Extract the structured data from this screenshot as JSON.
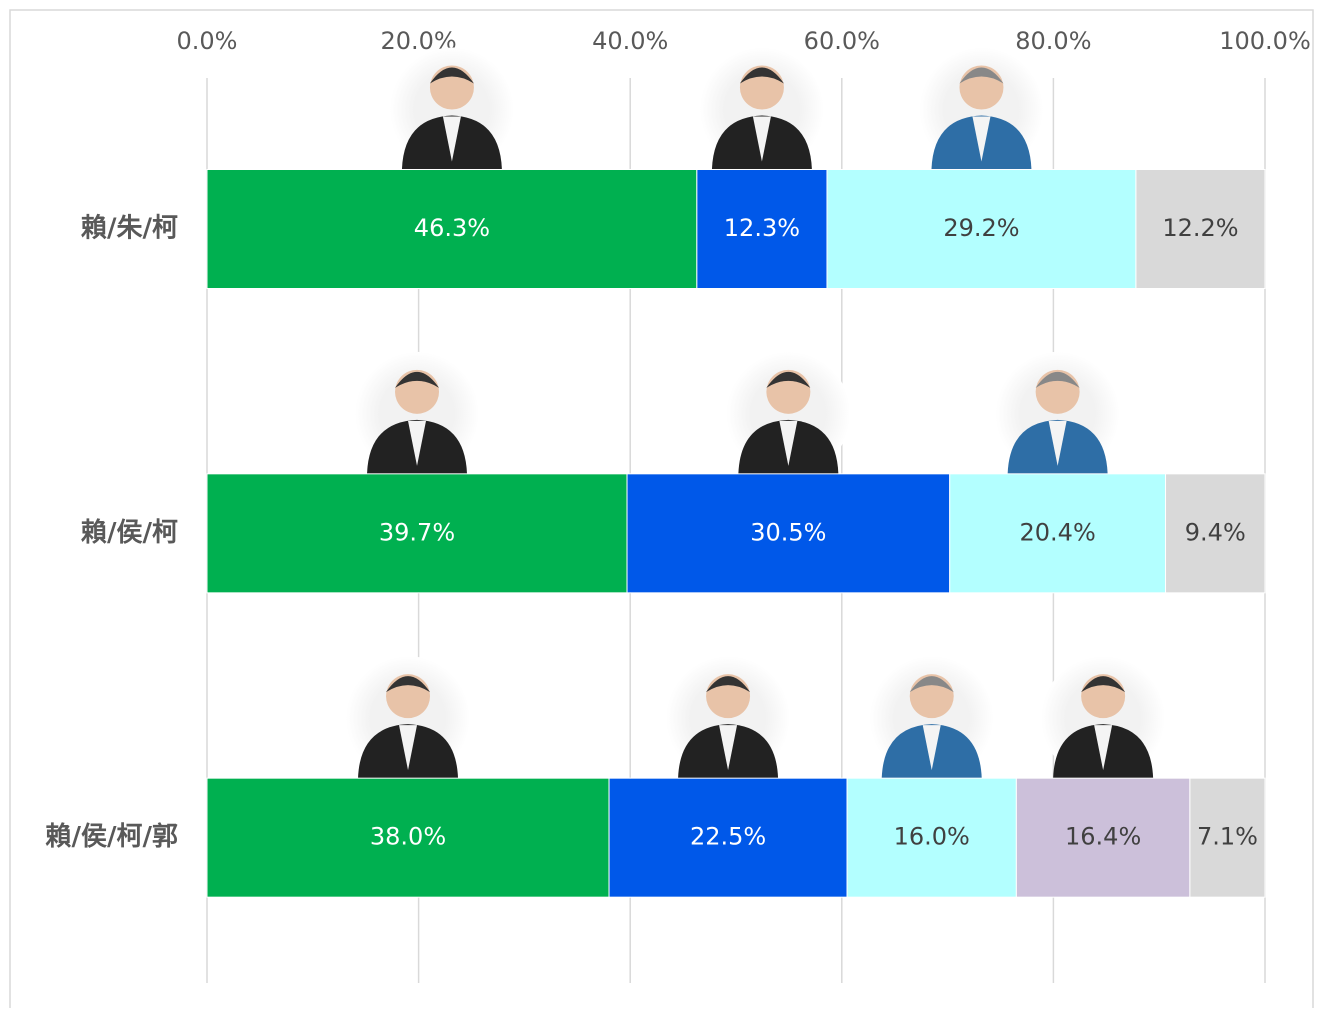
{
  "chart_data": {
    "type": "stacked-barh",
    "categories": [
      "賴/朱/柯",
      "賴/侯/柯",
      "賴/侯/柯/郭"
    ],
    "series": [
      {
        "color": "#00b050",
        "label_color": "#ffffff",
        "values": [
          46.3,
          39.7,
          38.0
        ],
        "value_labels": [
          "46.3%",
          "39.7%",
          "38.0%"
        ]
      },
      {
        "color": "#0058e9",
        "label_color": "#ffffff",
        "values": [
          12.3,
          30.5,
          22.5
        ],
        "value_labels": [
          "12.3%",
          "30.5%",
          "22.5%"
        ]
      },
      {
        "color": "#b3ffff",
        "label_color": "#404040",
        "values": [
          29.2,
          20.4,
          16.0
        ],
        "value_labels": [
          "29.2%",
          "20.4%",
          "16.0%"
        ]
      },
      {
        "color": "#ccc0da",
        "label_color": "#404040",
        "values": [
          null,
          null,
          16.4
        ],
        "value_labels": [
          null,
          null,
          "16.4%"
        ]
      },
      {
        "color": "#d9d9d9",
        "label_color": "#404040",
        "values": [
          12.2,
          9.4,
          7.1
        ],
        "value_labels": [
          "12.2%",
          "9.4%",
          "7.1%"
        ]
      }
    ],
    "xlim": [
      0,
      100
    ],
    "xticks": [
      {
        "value": 0,
        "label": "0.0%"
      },
      {
        "value": 20,
        "label": "20.0%"
      },
      {
        "value": 40,
        "label": "40.0%"
      },
      {
        "value": 60,
        "label": "60.0%"
      },
      {
        "value": 80,
        "label": "80.0%"
      },
      {
        "value": 100,
        "label": "100.0%"
      }
    ],
    "grid": true
  }
}
